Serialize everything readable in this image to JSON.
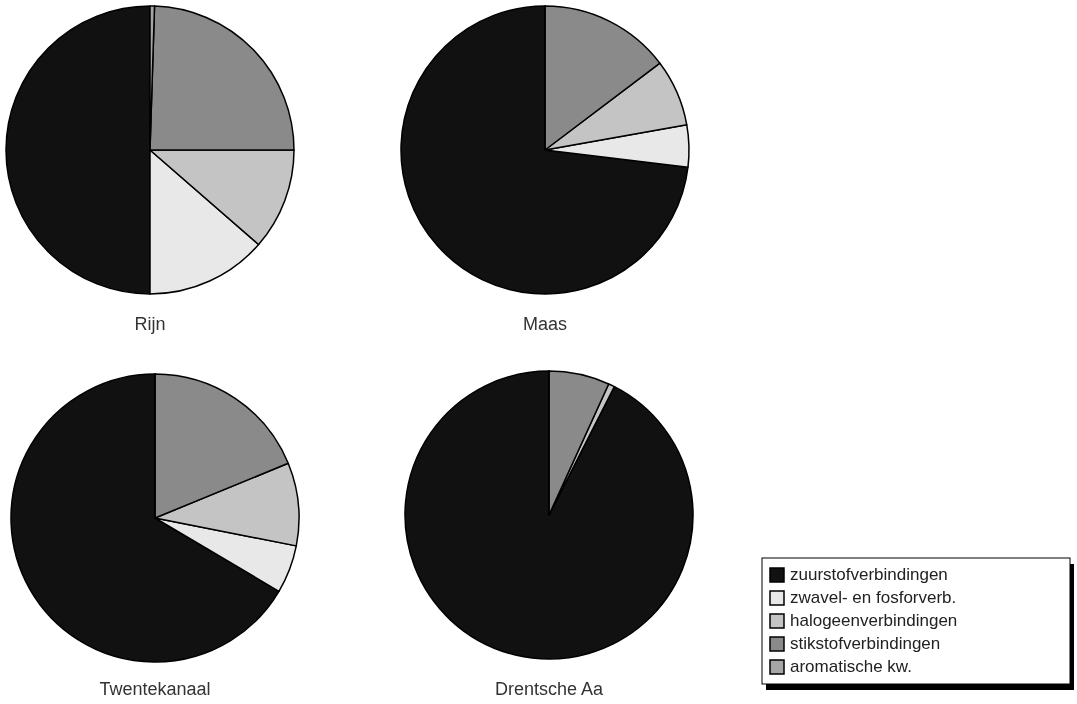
{
  "chart_data": [
    {
      "type": "pie",
      "title": "Rijn",
      "categories": [
        "zuurstofverbindingen",
        "zwavel- en fosforverb.",
        "halogeenverbindingen",
        "stikstofverbindingen",
        "aromatische kw."
      ],
      "values": [
        50,
        13.6,
        11.4,
        24.5,
        0.5
      ],
      "colors": [
        "#111111",
        "#e8e8e8",
        "#c4c4c4",
        "#8a8a8a",
        "#a6a6a6"
      ],
      "legend": "bottom right"
    },
    {
      "type": "pie",
      "title": "Maas",
      "categories": [
        null,
        null,
        null,
        null,
        null
      ],
      "values": [
        73.1,
        4.7,
        7.5,
        14.7,
        0
      ],
      "colors": [
        "#111111",
        "#e8e8e8",
        "#c4c4c4",
        "#8a8a8a",
        "#a6a6a6"
      ]
    },
    {
      "type": "pie",
      "title": "Twentekanaal",
      "categories": [
        null,
        null,
        null,
        null,
        null
      ],
      "values": [
        66.5,
        5.4,
        9.3,
        18.8,
        0
      ],
      "colors": [
        "#111111",
        "#e8e8e8",
        "#c4c4c4",
        "#8a8a8a",
        "#a6a6a6"
      ]
    },
    {
      "type": "pie",
      "title": "Drentsche Aa",
      "categories": [
        null,
        null,
        null,
        null,
        null
      ],
      "values": [
        92.5,
        0,
        0.7,
        6.8,
        0
      ],
      "colors": [
        "#111111",
        "#e8e8e8",
        "#c4c4c4",
        "#8a8a8a",
        "#a6a6a6"
      ]
    }
  ]
}
